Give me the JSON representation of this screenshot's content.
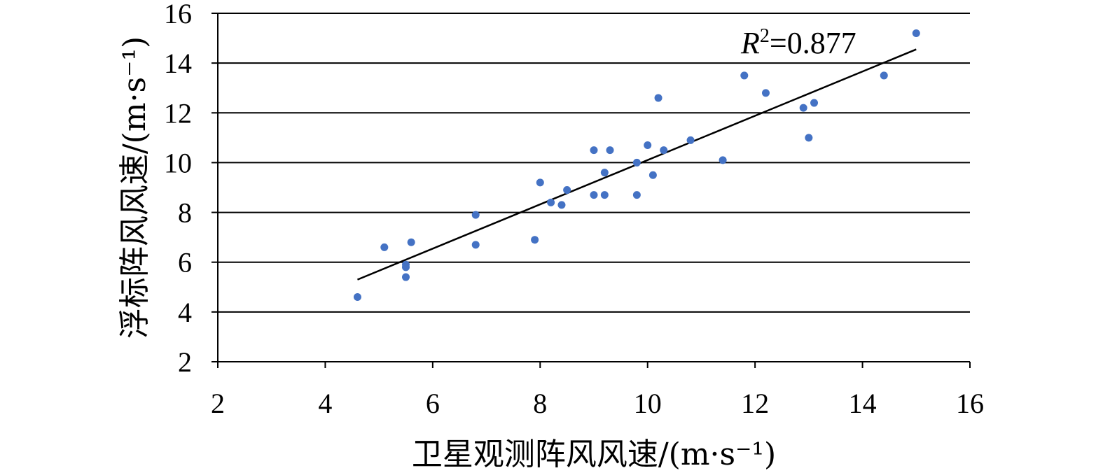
{
  "chart_data": {
    "type": "scatter",
    "title": "",
    "xlabel": "卫星观测阵风风速/(m·s⁻¹)",
    "ylabel": "浮标阵风风速/(m·s⁻¹)",
    "xlim": [
      2,
      16
    ],
    "ylim": [
      2,
      16
    ],
    "x_ticks": [
      "2",
      "4",
      "6",
      "8",
      "10",
      "12",
      "14",
      "16"
    ],
    "y_ticks": [
      "2",
      "4",
      "6",
      "8",
      "10",
      "12",
      "14",
      "16"
    ],
    "grid": "horizontal",
    "legend": "none",
    "annotation": {
      "r_letter": "R",
      "r_exponent": "2",
      "r_value": "=0.877"
    },
    "trendline": {
      "x": [
        4.6,
        15.0
      ],
      "y": [
        5.3,
        14.55
      ]
    },
    "series": [
      {
        "color": "#4472C4",
        "points": [
          [
            4.6,
            4.6
          ],
          [
            5.1,
            6.6
          ],
          [
            5.5,
            5.9
          ],
          [
            5.5,
            5.8
          ],
          [
            5.5,
            5.4
          ],
          [
            5.6,
            6.8
          ],
          [
            6.8,
            7.9
          ],
          [
            6.8,
            6.7
          ],
          [
            7.9,
            6.9
          ],
          [
            8.0,
            9.2
          ],
          [
            8.2,
            8.4
          ],
          [
            8.4,
            8.3
          ],
          [
            8.5,
            8.9
          ],
          [
            9.0,
            10.5
          ],
          [
            9.0,
            8.7
          ],
          [
            9.2,
            9.6
          ],
          [
            9.2,
            8.7
          ],
          [
            9.3,
            10.5
          ],
          [
            9.8,
            10.0
          ],
          [
            9.8,
            8.7
          ],
          [
            10.0,
            10.7
          ],
          [
            10.1,
            9.5
          ],
          [
            10.2,
            12.6
          ],
          [
            10.3,
            10.5
          ],
          [
            10.8,
            10.9
          ],
          [
            11.4,
            10.1
          ],
          [
            11.8,
            13.5
          ],
          [
            12.2,
            12.8
          ],
          [
            12.9,
            12.2
          ],
          [
            13.0,
            11.0
          ],
          [
            13.1,
            12.4
          ],
          [
            14.4,
            13.5
          ],
          [
            15.0,
            15.2
          ]
        ]
      }
    ]
  }
}
